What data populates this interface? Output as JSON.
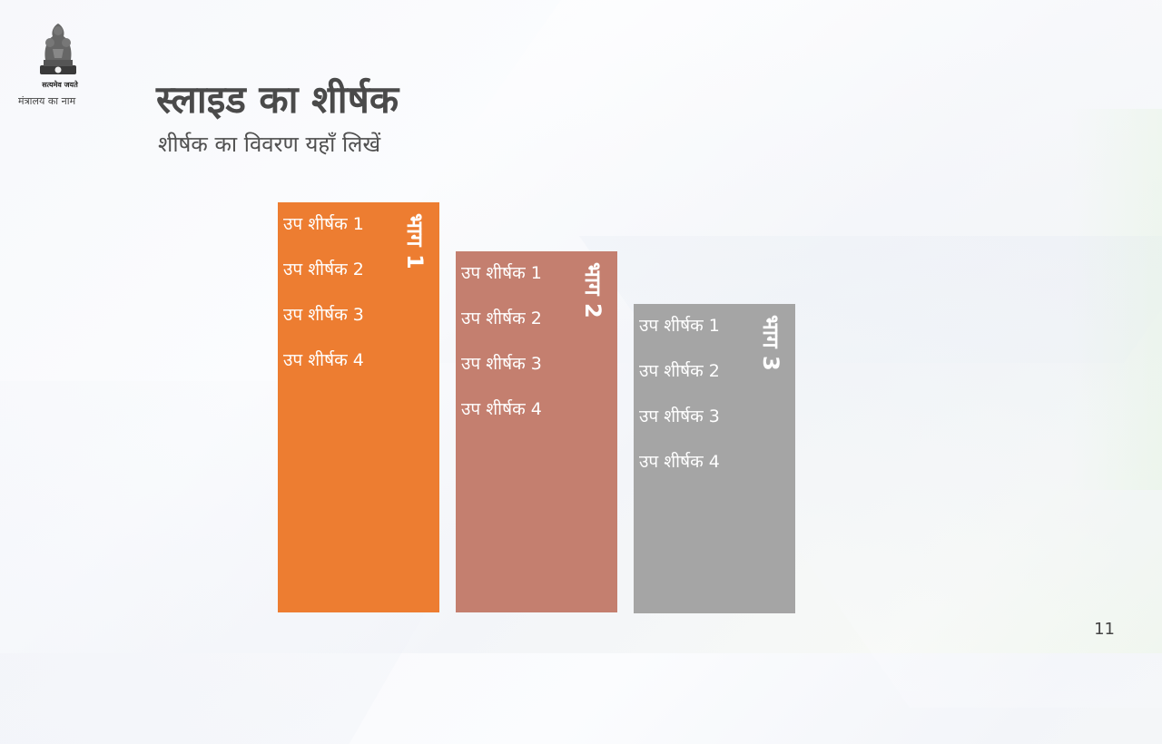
{
  "header": {
    "emblem_icon": "national-emblem-icon",
    "motto": "सत्यमेव जयते",
    "ministry": "मंत्रालय का नाम"
  },
  "slide": {
    "title": "स्लाइड का शीर्षक",
    "subtitle": "शीर्षक का विवरण यहाँ लिखें",
    "page_number": "11"
  },
  "panels": [
    {
      "label": "भाग 1",
      "color": "#ed7d31",
      "items": [
        "उप शीर्षक 1",
        "उप शीर्षक 2",
        "उप शीर्षक 3",
        "उप शीर्षक 4"
      ]
    },
    {
      "label": "भाग 2",
      "color": "#c47f6f",
      "items": [
        "उप शीर्षक 1",
        "उप शीर्षक 2",
        "उप शीर्षक 3",
        "उप शीर्षक 4"
      ]
    },
    {
      "label": "भाग 3",
      "color": "#a5a5a5",
      "items": [
        "उप शीर्षक 1",
        "उप शीर्षक 2",
        "उप शीर्षक 3",
        "उप शीर्षक 4"
      ]
    }
  ]
}
